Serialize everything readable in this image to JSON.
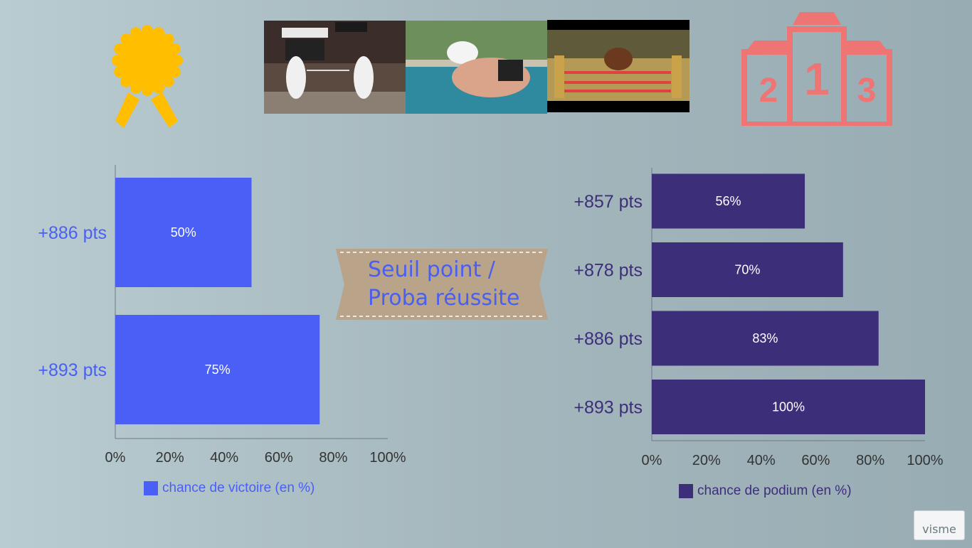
{
  "colors": {
    "left_bar": "#4a5ff5",
    "right_bar": "#3d2e7a",
    "medal": "#ffbe00",
    "podium": "#ef7575",
    "banner": "#b9a489"
  },
  "icons": {
    "medal": "medal-icon",
    "podium": "podium-icon"
  },
  "photos": [
    "fencing-photo",
    "swimming-photo",
    "show-jumping-photo"
  ],
  "banner": {
    "line1": "Seuil point /",
    "line2": "Proba réussite"
  },
  "chart_data": [
    {
      "type": "bar",
      "orientation": "horizontal",
      "categories": [
        "+886 pts",
        "+893 pts"
      ],
      "series": [
        {
          "name": "chance de victoire (en %)",
          "values": [
            50,
            75
          ]
        }
      ],
      "data_labels": [
        "50%",
        "75%"
      ],
      "xlim": [
        0,
        100
      ],
      "x_ticks": [
        "0%",
        "20%",
        "40%",
        "60%",
        "80%",
        "100%"
      ],
      "legend": "bottom",
      "grid": false
    },
    {
      "type": "bar",
      "orientation": "horizontal",
      "categories": [
        "+857 pts",
        "+878 pts",
        "+886 pts",
        "+893 pts"
      ],
      "series": [
        {
          "name": "chance de podium (en %)",
          "values": [
            56,
            70,
            83,
            100
          ]
        }
      ],
      "data_labels": [
        "56%",
        "70%",
        "83%",
        "100%"
      ],
      "xlim": [
        0,
        100
      ],
      "x_ticks": [
        "0%",
        "20%",
        "40%",
        "60%",
        "80%",
        "100%"
      ],
      "legend": "bottom",
      "grid": false
    }
  ],
  "watermark": "visme"
}
